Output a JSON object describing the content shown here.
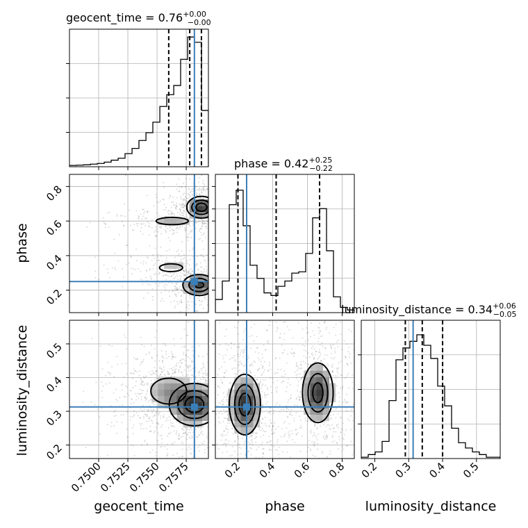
{
  "chart_data": {
    "type": "corner",
    "parameters": [
      "geocent_time",
      "phase",
      "luminosity_distance"
    ],
    "axis_labels": {
      "geocent_time": "geocent_time",
      "phase": "phase",
      "luminosity_distance": "luminosity_distance"
    },
    "ranges": {
      "geocent_time": [
        0.7475,
        0.7594
      ],
      "phase": [
        0.07,
        0.87
      ],
      "luminosity_distance": [
        0.16,
        0.57
      ]
    },
    "ticks": {
      "geocent_time": [
        "0.7500",
        "0.7525",
        "0.7550",
        "0.7575"
      ],
      "phase": [
        "0.2",
        "0.4",
        "0.6",
        "0.8"
      ],
      "luminosity_distance": [
        "0.2",
        "0.3",
        "0.4",
        "0.5"
      ]
    },
    "truths": {
      "geocent_time": 0.7582,
      "phase": 0.25,
      "luminosity_distance": 0.313
    },
    "titles": [
      {
        "param": "geocent_time",
        "label": "geocent_time",
        "median": "0.76",
        "plus": "+0.00",
        "minus": "−0.00"
      },
      {
        "param": "phase",
        "label": "phase",
        "median": "0.42",
        "plus": "+0.25",
        "minus": "−0.22"
      },
      {
        "param": "luminosity_distance",
        "label": "luminosity_distance",
        "median": "0.34",
        "plus": "+0.06",
        "minus": "−0.05"
      }
    ],
    "quantiles": {
      "geocent_time": [
        0.756,
        0.7578,
        0.7588
      ],
      "phase": [
        0.2,
        0.42,
        0.67
      ],
      "luminosity_distance": [
        0.29,
        0.34,
        0.4
      ]
    },
    "histograms": {
      "geocent_time": {
        "edges": [
          0.7475,
          0.7481,
          0.74869,
          0.74929,
          0.74988,
          0.75048,
          0.75107,
          0.75167,
          0.75226,
          0.75286,
          0.75345,
          0.75405,
          0.75464,
          0.75524,
          0.75583,
          0.75643,
          0.75702,
          0.75762,
          0.75821,
          0.75881,
          0.7594
        ],
        "counts": [
          0.01,
          0.012,
          0.015,
          0.02,
          0.025,
          0.035,
          0.05,
          0.065,
          0.1,
          0.14,
          0.2,
          0.26,
          0.34,
          0.46,
          0.55,
          0.62,
          0.82,
          0.99,
          0.95,
          0.43
        ]
      },
      "phase": {
        "edges": [
          0.07,
          0.11,
          0.15,
          0.19,
          0.23,
          0.27,
          0.31,
          0.35,
          0.39,
          0.43,
          0.47,
          0.51,
          0.55,
          0.59,
          0.63,
          0.67,
          0.71,
          0.75,
          0.79,
          0.83,
          0.87
        ],
        "counts": [
          0.1,
          0.24,
          0.82,
          0.93,
          0.66,
          0.36,
          0.26,
          0.15,
          0.13,
          0.2,
          0.24,
          0.3,
          0.31,
          0.45,
          0.72,
          0.79,
          0.47,
          0.12,
          0.04,
          0.02
        ]
      },
      "luminosity_distance": {
        "edges": [
          0.16,
          0.1805,
          0.201,
          0.2215,
          0.242,
          0.2625,
          0.283,
          0.3035,
          0.324,
          0.3445,
          0.365,
          0.3855,
          0.406,
          0.4265,
          0.447,
          0.4675,
          0.488,
          0.5085,
          0.529,
          0.5495,
          0.57
        ],
        "counts": [
          0.01,
          0.03,
          0.05,
          0.13,
          0.44,
          0.75,
          0.84,
          0.89,
          0.94,
          0.86,
          0.76,
          0.55,
          0.4,
          0.23,
          0.12,
          0.08,
          0.05,
          0.03,
          0.01,
          0.01
        ]
      }
    },
    "density_2d": [
      {
        "x": "geocent_time",
        "y": "phase",
        "modes": [
          {
            "center": [
              0.7588,
              0.68
            ],
            "spread": [
              0.0007,
              0.035
            ],
            "weight": 1.0
          },
          {
            "center": [
              0.7586,
              0.23
            ],
            "spread": [
              0.0008,
              0.035
            ],
            "weight": 0.9
          },
          {
            "center": [
              0.7563,
              0.6
            ],
            "spread": [
              0.0013,
              0.02
            ],
            "weight": 0.35
          },
          {
            "center": [
              0.7562,
              0.33
            ],
            "spread": [
              0.0011,
              0.025
            ],
            "weight": 0.3
          }
        ]
      },
      {
        "x": "geocent_time",
        "y": "luminosity_distance",
        "modes": [
          {
            "center": [
              0.7582,
              0.32
            ],
            "spread": [
              0.0012,
              0.035
            ],
            "weight": 1.0
          },
          {
            "center": [
              0.756,
              0.36
            ],
            "spread": [
              0.0012,
              0.03
            ],
            "weight": 0.45
          }
        ]
      },
      {
        "x": "phase",
        "y": "luminosity_distance",
        "modes": [
          {
            "center": [
              0.24,
              0.32
            ],
            "spread": [
              0.05,
              0.05
            ],
            "weight": 1.0
          },
          {
            "center": [
              0.66,
              0.355
            ],
            "spread": [
              0.05,
              0.05
            ],
            "weight": 0.95
          }
        ]
      }
    ],
    "contour_levels": [
      0.2,
      0.5,
      0.8
    ]
  }
}
